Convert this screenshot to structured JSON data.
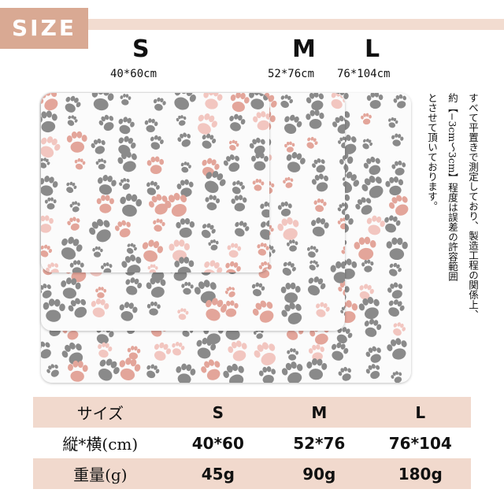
{
  "header": {
    "badge": "SIZE"
  },
  "sizes": [
    {
      "label": "S",
      "dims": "40*60cm"
    },
    {
      "label": "M",
      "dims": "52*76cm"
    },
    {
      "label": "L",
      "dims": "76*104cm"
    }
  ],
  "note": {
    "col1": "すべて平置きで測定しており、製造工程の関係上、",
    "col2": "約【−3cm〜3cm】程度は誤差の許容範囲",
    "col3": "とさせて頂いております。"
  },
  "table": {
    "rows": [
      {
        "header": "サイズ",
        "s": "S",
        "m": "M",
        "l": "L"
      },
      {
        "header": "縦*横(cm)",
        "s": "40*60",
        "m": "52*76",
        "l": "76*104"
      },
      {
        "header": "重量(g)",
        "s": "45g",
        "m": "90g",
        "l": "180g"
      }
    ]
  },
  "colors": {
    "accent": "#d9a993",
    "band": "#f1d9cd",
    "paw_gray": "#8a8a8a",
    "paw_pink": "#e3a59a"
  }
}
